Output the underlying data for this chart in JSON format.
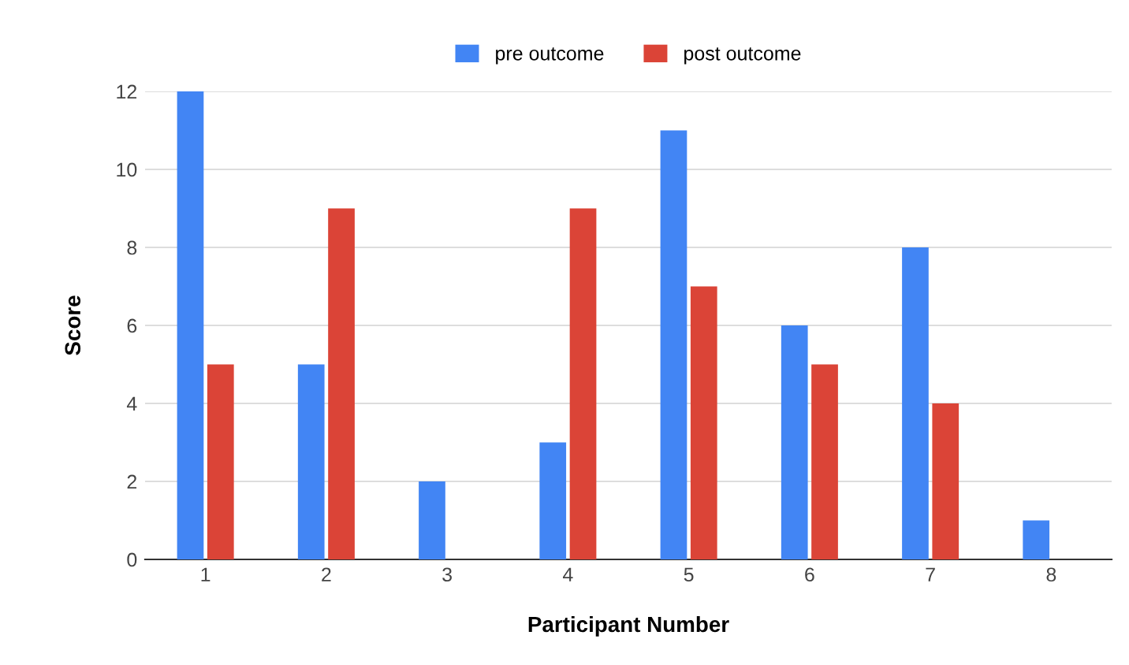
{
  "chart_data": {
    "type": "bar",
    "xlabel": "Participant Number",
    "ylabel": "Score",
    "categories": [
      "1",
      "2",
      "3",
      "4",
      "5",
      "6",
      "7",
      "8"
    ],
    "series": [
      {
        "name": "pre outcome",
        "color": "#4285f4",
        "values": [
          12,
          5,
          2,
          3,
          11,
          6,
          8,
          1
        ]
      },
      {
        "name": "post outcome",
        "color": "#db4437",
        "values": [
          5,
          9,
          null,
          9,
          7,
          5,
          4,
          null
        ]
      }
    ],
    "ylim": [
      0,
      12
    ],
    "yticks": [
      0,
      2,
      4,
      6,
      8,
      10,
      12
    ],
    "grid": "y",
    "legend": "top"
  }
}
